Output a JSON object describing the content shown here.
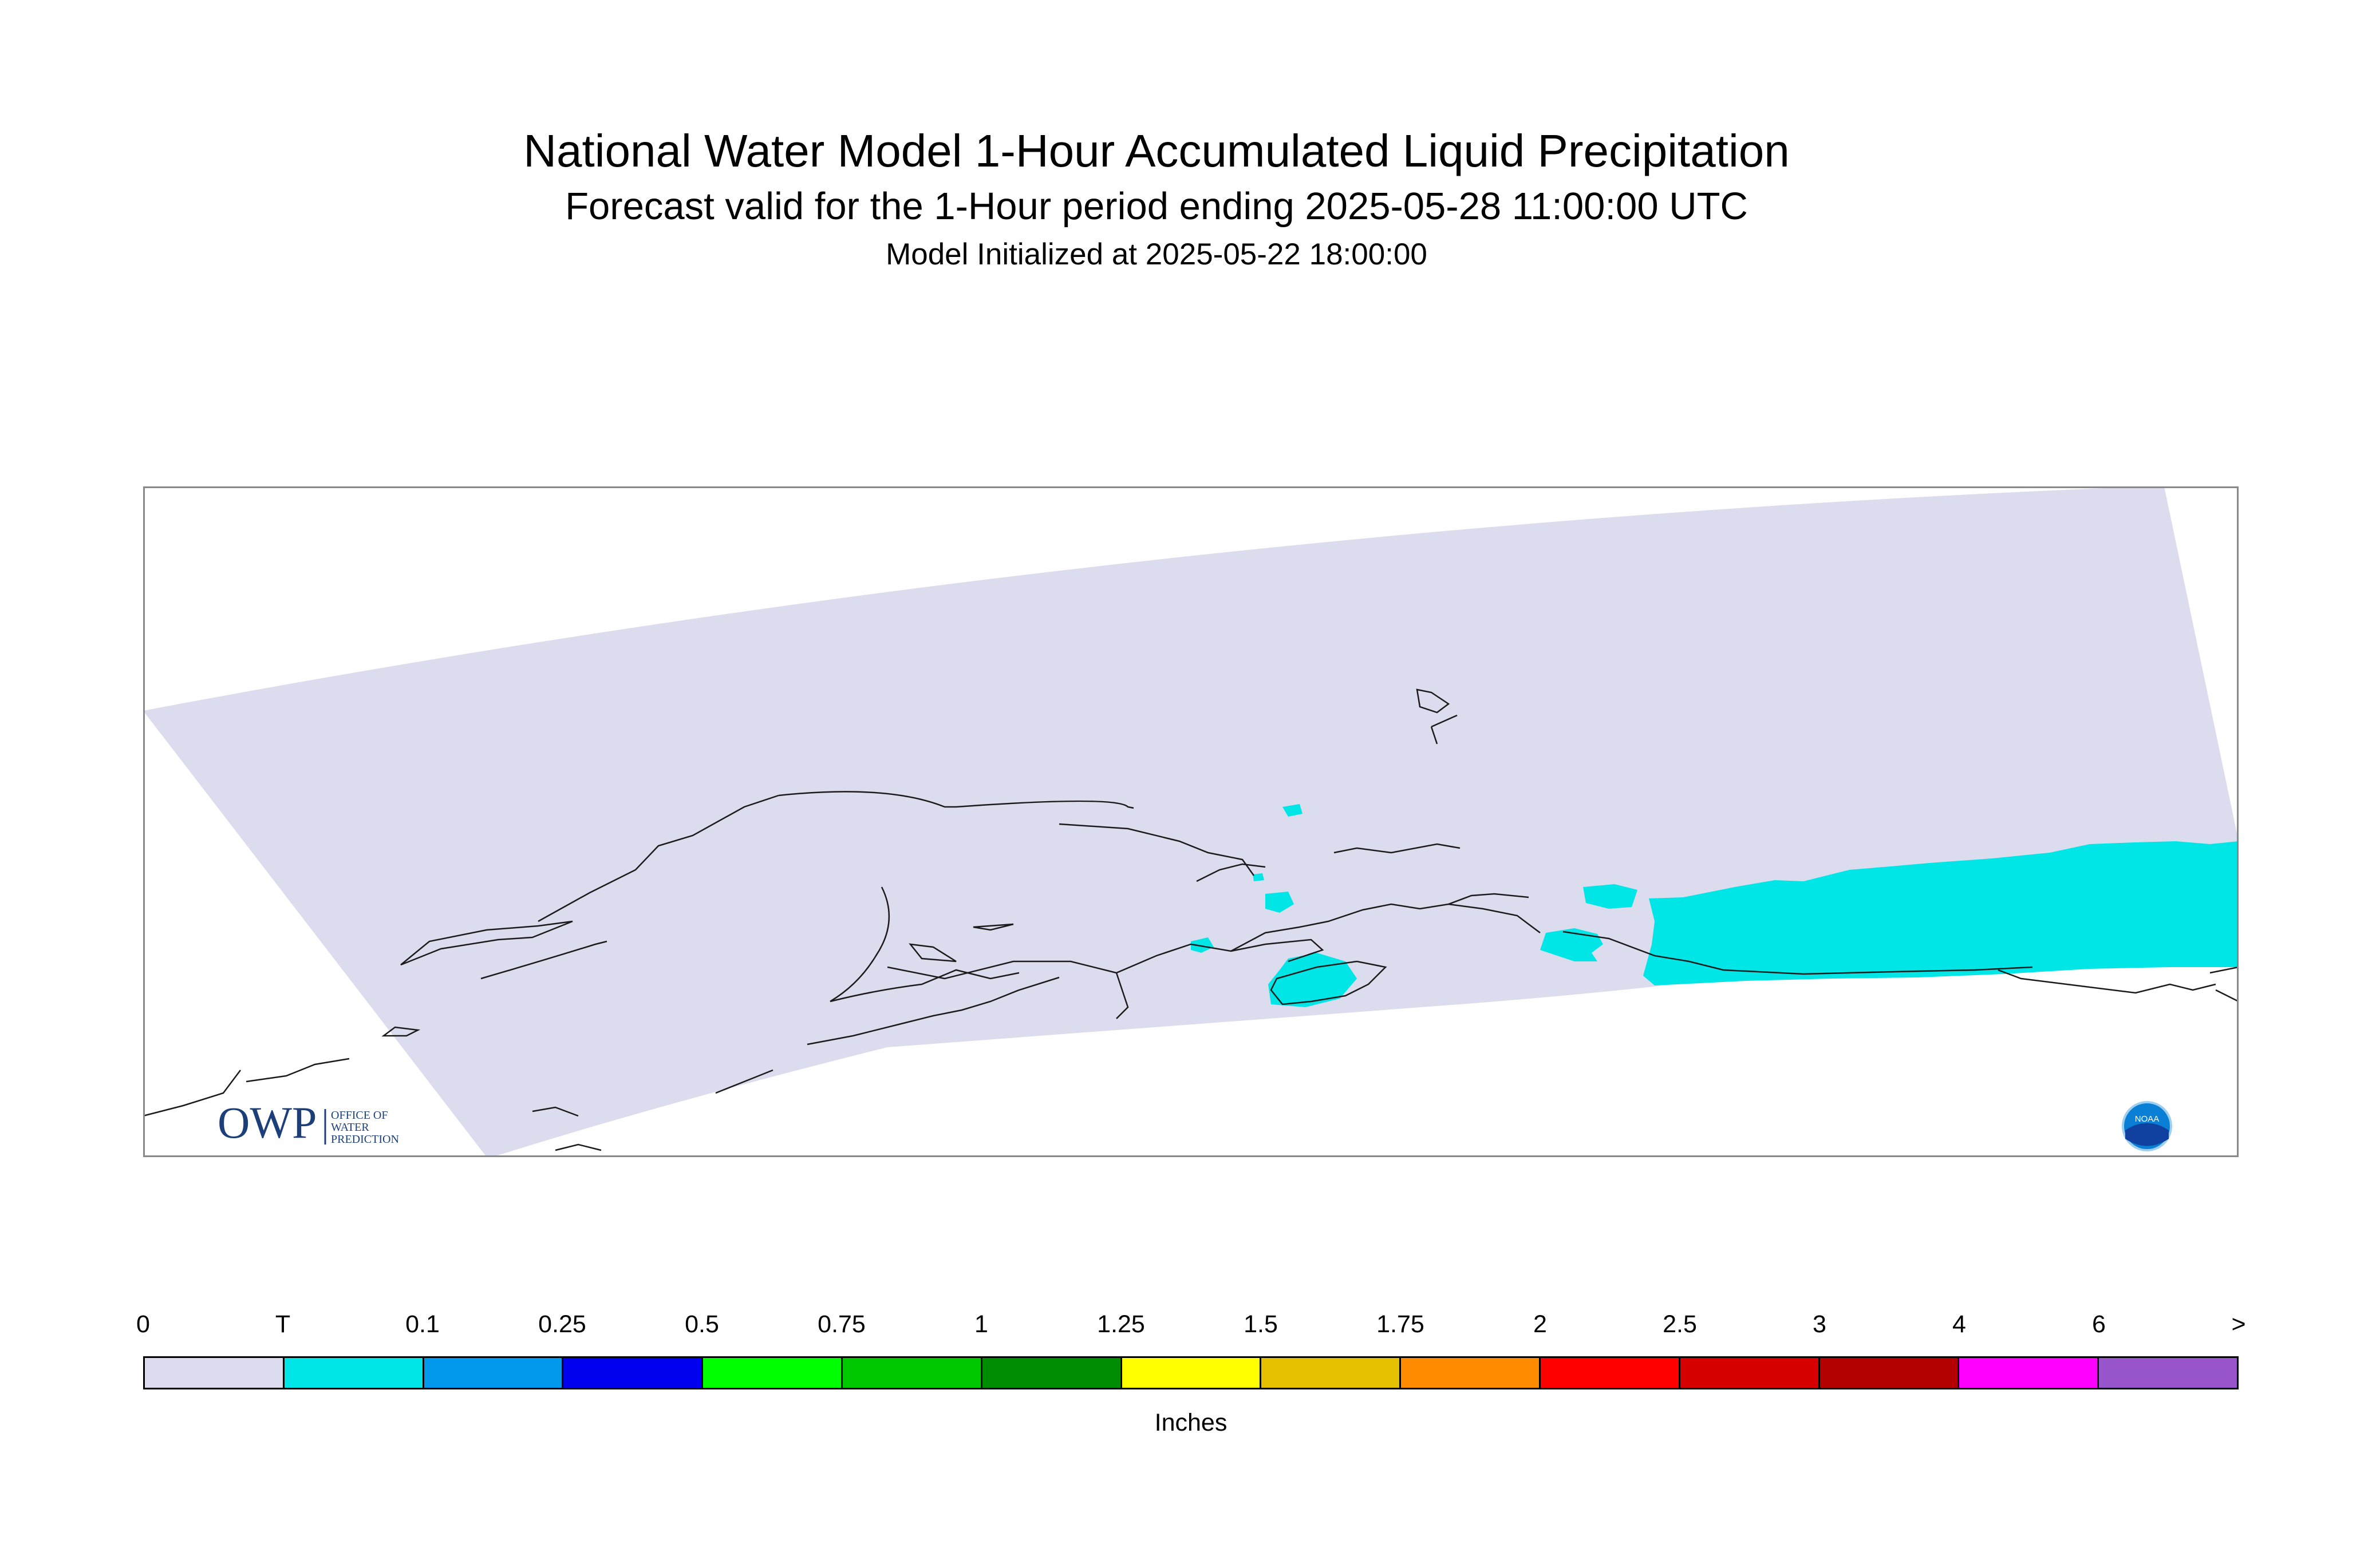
{
  "header": {
    "title": "National Water Model 1-Hour Accumulated Liquid Precipitation",
    "subtitle": "Forecast valid for the 1-Hour period ending 2025-05-28 11:00:00 UTC",
    "initialized": "Model Initialized at 2025-05-22 18:00:00"
  },
  "map": {
    "region": "Alaska",
    "domain_color": "#dcdcef",
    "precip_color": "#00e5e5",
    "coastline_color": "#1a1a1a",
    "logos": {
      "owp": {
        "mark": "OWP",
        "line1": "OFFICE OF",
        "line2": "WATER",
        "line3": "PREDICTION"
      },
      "noaa": {
        "mark": "NOAA"
      }
    }
  },
  "legend": {
    "ticks": [
      "0",
      "T",
      "0.1",
      "0.25",
      "0.5",
      "0.75",
      "1",
      "1.25",
      "1.5",
      "1.75",
      "2",
      "2.5",
      "3",
      "4",
      "6",
      ">"
    ],
    "colors": [
      "#dcdcef",
      "#00e5e5",
      "#0099ee",
      "#0000ee",
      "#00ff00",
      "#00c800",
      "#008c00",
      "#ffff00",
      "#e5c000",
      "#ff8c00",
      "#ff0000",
      "#d70000",
      "#b40000",
      "#ff00ff",
      "#9955cc"
    ],
    "units": "Inches"
  }
}
